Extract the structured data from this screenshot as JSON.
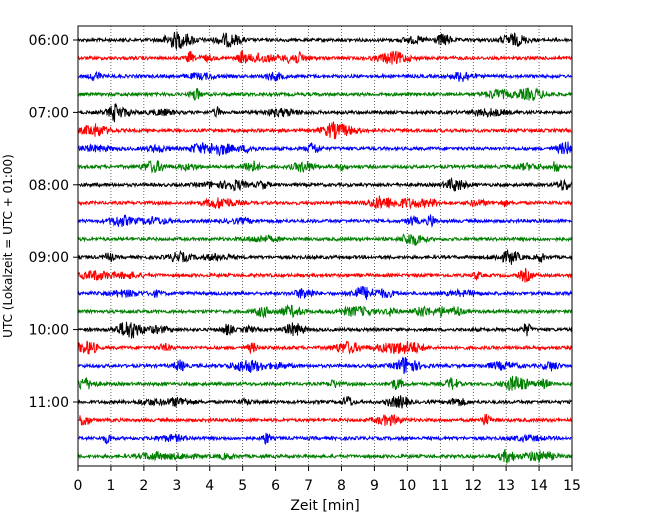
{
  "chart_data": {
    "type": "line",
    "title": "",
    "xlabel": "Zeit  [min]",
    "ylabel": "UTC (Lokalzeit = UTC + 01:00)",
    "xlim": [
      0,
      15
    ],
    "x_ticks": [
      0,
      1,
      2,
      3,
      4,
      5,
      6,
      7,
      8,
      9,
      10,
      11,
      12,
      13,
      14,
      15
    ],
    "x_tick_labels": [
      "0",
      "1",
      "2",
      "3",
      "4",
      "5",
      "6",
      "7",
      "8",
      "9",
      "10",
      "11",
      "12",
      "13",
      "14",
      "15"
    ],
    "y_ticks": [
      "06:00",
      "07:00",
      "08:00",
      "09:00",
      "10:00",
      "11:00"
    ],
    "grid": "vertical dotted",
    "trace_minutes": 15,
    "trace_colors": [
      "#000000",
      "#ff0000",
      "#0000ff",
      "#008000"
    ],
    "traces": [
      {
        "start": "06:00",
        "color": "#000000"
      },
      {
        "start": "06:15",
        "color": "#ff0000"
      },
      {
        "start": "06:30",
        "color": "#0000ff"
      },
      {
        "start": "06:45",
        "color": "#008000"
      },
      {
        "start": "07:00",
        "color": "#000000"
      },
      {
        "start": "07:15",
        "color": "#ff0000"
      },
      {
        "start": "07:30",
        "color": "#0000ff"
      },
      {
        "start": "07:45",
        "color": "#008000"
      },
      {
        "start": "08:00",
        "color": "#000000"
      },
      {
        "start": "08:15",
        "color": "#ff0000"
      },
      {
        "start": "08:30",
        "color": "#0000ff"
      },
      {
        "start": "08:45",
        "color": "#008000"
      },
      {
        "start": "09:00",
        "color": "#000000"
      },
      {
        "start": "09:15",
        "color": "#ff0000"
      },
      {
        "start": "09:30",
        "color": "#0000ff"
      },
      {
        "start": "09:45",
        "color": "#008000"
      },
      {
        "start": "10:00",
        "color": "#000000"
      },
      {
        "start": "10:15",
        "color": "#ff0000"
      },
      {
        "start": "10:30",
        "color": "#0000ff"
      },
      {
        "start": "10:45",
        "color": "#008000"
      },
      {
        "start": "11:00",
        "color": "#000000"
      },
      {
        "start": "11:15",
        "color": "#ff0000"
      },
      {
        "start": "11:30",
        "color": "#0000ff"
      },
      {
        "start": "11:45",
        "color": "#008000"
      }
    ]
  }
}
